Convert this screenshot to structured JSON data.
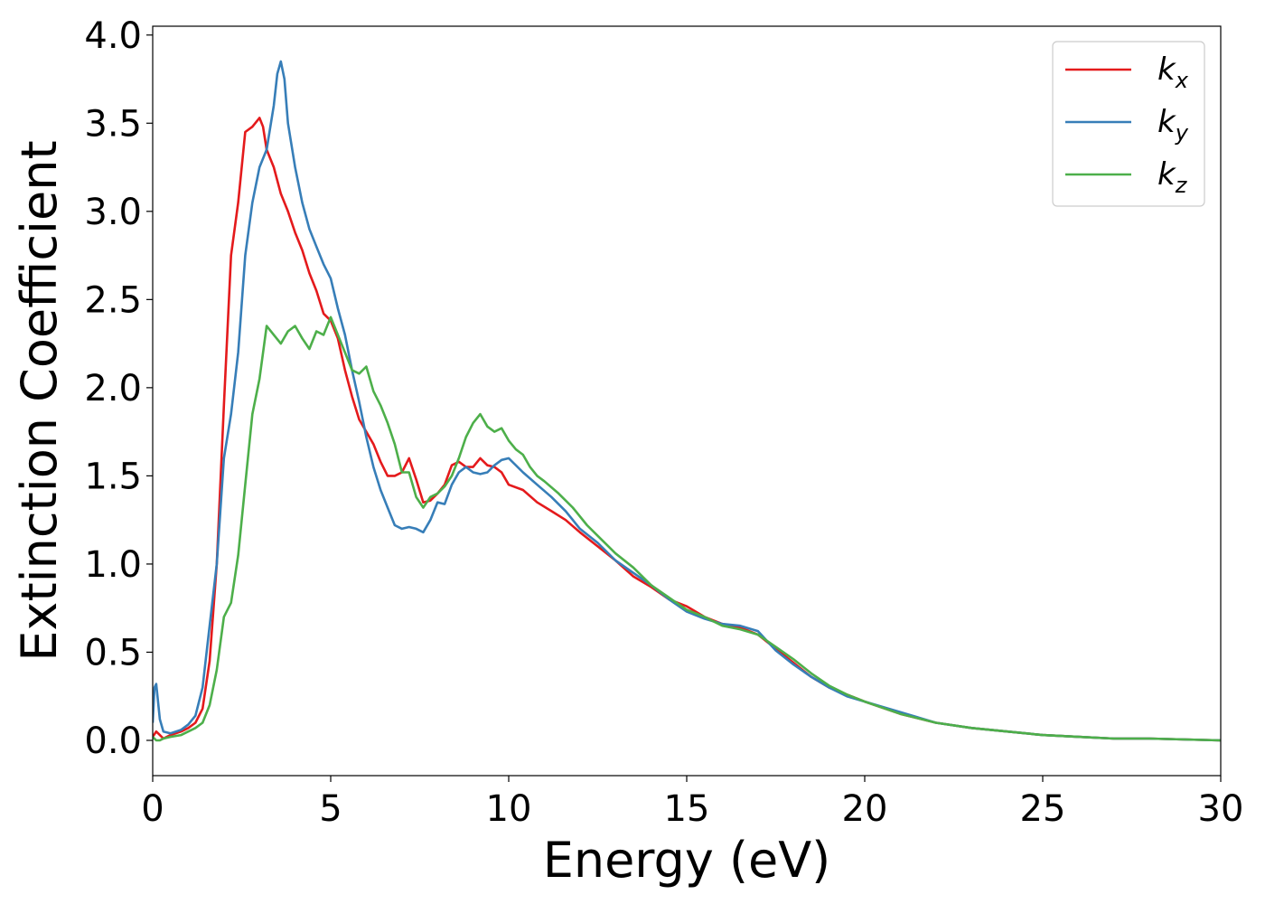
{
  "chart_data": {
    "type": "line",
    "xlabel": "Energy (eV)",
    "ylabel": "Extinction Coefficient",
    "xlim": [
      0,
      30
    ],
    "ylim": [
      -0.2,
      4.05
    ],
    "xticks": [
      "0",
      "5",
      "10",
      "15",
      "20",
      "25",
      "30"
    ],
    "yticks": [
      "0.0",
      "0.5",
      "1.0",
      "1.5",
      "2.0",
      "2.5",
      "3.0",
      "3.5",
      "4.0"
    ],
    "grid": false,
    "legend_position": "top-right",
    "series": [
      {
        "name": "k_x",
        "label_main": "k",
        "label_sub": "x",
        "color": "#e41a1c",
        "x": [
          0,
          0.1,
          0.2,
          0.3,
          0.5,
          0.8,
          1.0,
          1.2,
          1.4,
          1.6,
          1.8,
          2.0,
          2.2,
          2.4,
          2.6,
          2.8,
          3.0,
          3.1,
          3.2,
          3.4,
          3.6,
          3.8,
          4.0,
          4.2,
          4.4,
          4.6,
          4.8,
          5.0,
          5.2,
          5.4,
          5.6,
          5.8,
          6.0,
          6.2,
          6.4,
          6.6,
          6.8,
          7.0,
          7.2,
          7.4,
          7.6,
          7.8,
          8.0,
          8.2,
          8.4,
          8.6,
          8.8,
          9.0,
          9.2,
          9.4,
          9.6,
          9.8,
          10.0,
          10.4,
          10.8,
          11.2,
          11.6,
          12.0,
          12.5,
          13.0,
          13.5,
          14.0,
          14.5,
          15.0,
          15.5,
          16.0,
          16.5,
          17.0,
          17.5,
          18.0,
          18.5,
          19.0,
          19.5,
          20.0,
          21.0,
          22.0,
          23.0,
          24.0,
          25.0,
          26.0,
          27.0,
          28.0,
          29.0,
          30.0
        ],
        "y": [
          0.02,
          0.05,
          0.03,
          0.01,
          0.03,
          0.05,
          0.07,
          0.1,
          0.18,
          0.45,
          1.0,
          1.9,
          2.75,
          3.05,
          3.45,
          3.48,
          3.53,
          3.48,
          3.35,
          3.25,
          3.1,
          3.0,
          2.88,
          2.78,
          2.65,
          2.55,
          2.42,
          2.38,
          2.28,
          2.1,
          1.95,
          1.82,
          1.75,
          1.68,
          1.58,
          1.5,
          1.5,
          1.52,
          1.6,
          1.48,
          1.35,
          1.36,
          1.4,
          1.45,
          1.56,
          1.58,
          1.55,
          1.55,
          1.6,
          1.56,
          1.55,
          1.52,
          1.45,
          1.42,
          1.35,
          1.3,
          1.25,
          1.18,
          1.1,
          1.02,
          0.93,
          0.87,
          0.8,
          0.76,
          0.7,
          0.66,
          0.64,
          0.6,
          0.52,
          0.44,
          0.36,
          0.3,
          0.26,
          0.22,
          0.15,
          0.1,
          0.07,
          0.05,
          0.03,
          0.02,
          0.01,
          0.01,
          0.005,
          0.0
        ]
      },
      {
        "name": "k_y",
        "label_main": "k",
        "label_sub": "y",
        "color": "#377eb8",
        "x": [
          0,
          0.05,
          0.1,
          0.2,
          0.3,
          0.5,
          0.8,
          1.0,
          1.2,
          1.4,
          1.6,
          1.8,
          2.0,
          2.2,
          2.4,
          2.6,
          2.8,
          3.0,
          3.2,
          3.4,
          3.5,
          3.6,
          3.7,
          3.8,
          4.0,
          4.2,
          4.4,
          4.6,
          4.8,
          5.0,
          5.2,
          5.4,
          5.6,
          5.8,
          6.0,
          6.2,
          6.4,
          6.6,
          6.8,
          7.0,
          7.2,
          7.4,
          7.6,
          7.8,
          8.0,
          8.2,
          8.4,
          8.6,
          8.8,
          9.0,
          9.2,
          9.4,
          9.6,
          9.8,
          10.0,
          10.4,
          10.8,
          11.2,
          11.6,
          12.0,
          12.5,
          13.0,
          13.5,
          14.0,
          14.5,
          15.0,
          15.5,
          16.0,
          16.5,
          17.0,
          17.5,
          18.0,
          18.5,
          19.0,
          19.5,
          20.0,
          21.0,
          22.0,
          23.0,
          24.0,
          25.0,
          26.0,
          27.0,
          28.0,
          29.0,
          30.0
        ],
        "y": [
          0.1,
          0.3,
          0.32,
          0.12,
          0.05,
          0.04,
          0.06,
          0.09,
          0.14,
          0.3,
          0.65,
          1.0,
          1.6,
          1.85,
          2.2,
          2.75,
          3.05,
          3.25,
          3.35,
          3.6,
          3.78,
          3.85,
          3.75,
          3.5,
          3.25,
          3.05,
          2.9,
          2.8,
          2.7,
          2.62,
          2.45,
          2.3,
          2.1,
          1.92,
          1.72,
          1.55,
          1.42,
          1.32,
          1.22,
          1.2,
          1.21,
          1.2,
          1.18,
          1.25,
          1.35,
          1.34,
          1.45,
          1.52,
          1.55,
          1.52,
          1.51,
          1.52,
          1.56,
          1.59,
          1.6,
          1.52,
          1.45,
          1.38,
          1.3,
          1.2,
          1.12,
          1.02,
          0.95,
          0.88,
          0.8,
          0.73,
          0.69,
          0.66,
          0.65,
          0.62,
          0.51,
          0.43,
          0.36,
          0.3,
          0.25,
          0.22,
          0.16,
          0.1,
          0.07,
          0.05,
          0.03,
          0.02,
          0.01,
          0.01,
          0.005,
          0.0
        ]
      },
      {
        "name": "k_z",
        "label_main": "k",
        "label_sub": "z",
        "color": "#4daf4a",
        "x": [
          0,
          0.1,
          0.2,
          0.3,
          0.5,
          0.8,
          1.0,
          1.2,
          1.4,
          1.6,
          1.8,
          2.0,
          2.2,
          2.4,
          2.6,
          2.8,
          3.0,
          3.2,
          3.4,
          3.6,
          3.8,
          4.0,
          4.2,
          4.4,
          4.6,
          4.8,
          5.0,
          5.2,
          5.4,
          5.6,
          5.8,
          6.0,
          6.2,
          6.4,
          6.6,
          6.8,
          7.0,
          7.2,
          7.4,
          7.6,
          7.8,
          8.0,
          8.2,
          8.4,
          8.6,
          8.8,
          9.0,
          9.2,
          9.4,
          9.6,
          9.8,
          10.0,
          10.2,
          10.4,
          10.6,
          10.8,
          11.0,
          11.4,
          11.8,
          12.2,
          12.6,
          13.0,
          13.5,
          14.0,
          14.5,
          15.0,
          15.5,
          16.0,
          16.5,
          17.0,
          17.5,
          18.0,
          18.5,
          19.0,
          19.5,
          20.0,
          21.0,
          22.0,
          23.0,
          24.0,
          25.0,
          26.0,
          27.0,
          28.0,
          29.0,
          30.0
        ],
        "y": [
          0.02,
          0.0,
          0.0,
          0.01,
          0.02,
          0.03,
          0.05,
          0.07,
          0.1,
          0.2,
          0.4,
          0.7,
          0.78,
          1.05,
          1.45,
          1.85,
          2.05,
          2.35,
          2.3,
          2.25,
          2.32,
          2.35,
          2.28,
          2.22,
          2.32,
          2.3,
          2.4,
          2.3,
          2.2,
          2.1,
          2.08,
          2.12,
          1.98,
          1.9,
          1.8,
          1.68,
          1.52,
          1.52,
          1.38,
          1.32,
          1.38,
          1.4,
          1.44,
          1.5,
          1.6,
          1.72,
          1.8,
          1.85,
          1.78,
          1.75,
          1.77,
          1.7,
          1.65,
          1.62,
          1.55,
          1.5,
          1.47,
          1.4,
          1.32,
          1.22,
          1.14,
          1.06,
          0.98,
          0.88,
          0.81,
          0.74,
          0.7,
          0.65,
          0.63,
          0.6,
          0.53,
          0.46,
          0.38,
          0.31,
          0.26,
          0.22,
          0.15,
          0.1,
          0.07,
          0.05,
          0.03,
          0.02,
          0.01,
          0.01,
          0.005,
          0.0
        ]
      }
    ]
  }
}
